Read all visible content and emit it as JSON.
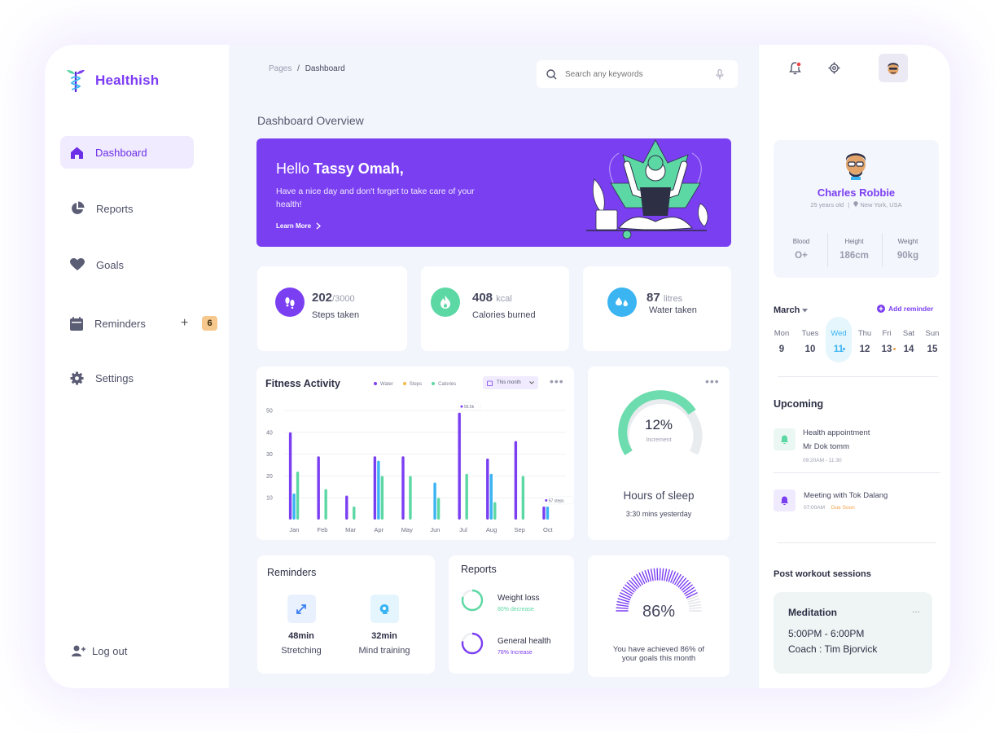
{
  "app": {
    "name": "Healthish"
  },
  "sidebar": {
    "items": [
      {
        "label": "Dashboard",
        "icon": "home-icon",
        "active": true
      },
      {
        "label": "Reports",
        "icon": "pie-chart-icon",
        "active": false
      },
      {
        "label": "Goals",
        "icon": "heart-icon",
        "active": false
      },
      {
        "label": "Reminders",
        "icon": "calendar-icon",
        "active": false
      },
      {
        "label": "Settings",
        "icon": "gear-icon",
        "active": false
      }
    ],
    "reminders_plus": "+",
    "reminders_count": "6",
    "logout_label": "Log out"
  },
  "breadcrumb": {
    "parent": "Pages",
    "separator": "/",
    "current": "Dashboard"
  },
  "search": {
    "placeholder": "Search any keywords"
  },
  "page_title": "Dashboard Overview",
  "banner": {
    "greeting": "Hello",
    "name": "Tassy Omah,",
    "message": "Have a nice day and don't forget to take care of your health!",
    "cta": "Learn More"
  },
  "stats": [
    {
      "value": "202",
      "unit": "/3000",
      "label": "Steps taken",
      "icon": "footsteps-icon",
      "color": "#7b3ff2"
    },
    {
      "value": "408",
      "unit": "kcal",
      "label": "Calories burned",
      "icon": "flame-icon",
      "color": "#5cd8a4"
    },
    {
      "value": "87",
      "unit": "litres",
      "label": "Water taken",
      "icon": "water-drops-icon",
      "color": "#3bb4f2"
    }
  ],
  "fitness": {
    "title": "Fitness Activity",
    "legend": [
      {
        "name": "Water",
        "color": "#7b3ff2"
      },
      {
        "name": "Steps",
        "color": "#f5b84a"
      },
      {
        "name": "Calories",
        "color": "#5cd8a4"
      }
    ],
    "filter": "This month",
    "menu": "•••"
  },
  "chart_data": {
    "type": "bar",
    "categories": [
      "Jan",
      "Feb",
      "Mar",
      "Apr",
      "May",
      "Jun",
      "Jul",
      "Aug",
      "Sep",
      "Oct"
    ],
    "yticks": [
      10,
      20,
      30,
      40,
      50
    ],
    "ylim": [
      0,
      50
    ],
    "series": [
      {
        "name": "Water",
        "color": "#7b3ff2",
        "values": [
          40,
          29,
          11,
          29,
          29,
          0,
          49,
          28,
          36,
          6
        ]
      },
      {
        "name": "Steps",
        "color": "#3bb4f2",
        "values": [
          12,
          0,
          0,
          27,
          0,
          17,
          0,
          21,
          0,
          6
        ]
      },
      {
        "name": "Calories",
        "color": "#5cd8a4",
        "values": [
          22,
          14,
          6,
          20,
          20,
          10,
          21,
          8,
          20,
          0
        ]
      }
    ],
    "annotations": [
      {
        "category": "Jul",
        "label": "56.5k"
      },
      {
        "category": "Oct",
        "label": "57 steps"
      }
    ]
  },
  "sleep": {
    "percent_label": "12%",
    "percent": 12,
    "sub": "Increment",
    "title": "Hours of sleep",
    "detail": "3:30 mins yesterday",
    "menu": "•••"
  },
  "reminders_card": {
    "title": "Reminders",
    "items": [
      {
        "value": "48min",
        "label": "Stretching",
        "icon": "stretch-arrows-icon"
      },
      {
        "value": "32min",
        "label": "Mind training",
        "icon": "brain-head-icon"
      }
    ]
  },
  "reports_card": {
    "title": "Reports",
    "items": [
      {
        "label": "Weight loss",
        "sub": "80% decrease",
        "percent": 80,
        "color": "#5cd8a4"
      },
      {
        "label": "General health",
        "sub": "78% Increase",
        "percent": 78,
        "color": "#7b3ff2"
      }
    ]
  },
  "goals_card": {
    "percent_label": "86%",
    "percent": 86,
    "text": "You have achieved 86% of your goals this month"
  },
  "profile": {
    "name": "Charles Robbie",
    "age": "25 years old",
    "location": "New York, USA",
    "metrics": [
      {
        "label": "Blood",
        "value": "O+"
      },
      {
        "label": "Height",
        "value": "186cm"
      },
      {
        "label": "Weight",
        "value": "90kg"
      }
    ]
  },
  "calendar": {
    "month": "March",
    "add_label": "Add reminder",
    "days": [
      {
        "name": "Mon",
        "num": "9",
        "selected": false,
        "dot": false
      },
      {
        "name": "Tues",
        "num": "10",
        "selected": false,
        "dot": false
      },
      {
        "name": "Wed",
        "num": "11",
        "selected": true,
        "dot": true
      },
      {
        "name": "Thu",
        "num": "12",
        "selected": false,
        "dot": false
      },
      {
        "name": "Fri",
        "num": "13",
        "selected": false,
        "dot": true
      },
      {
        "name": "Sat",
        "num": "14",
        "selected": false,
        "dot": false
      },
      {
        "name": "Sun",
        "num": "15",
        "selected": false,
        "dot": false
      }
    ]
  },
  "upcoming": {
    "title": "Upcoming",
    "items": [
      {
        "title": "Health appointment",
        "sub": "Mr Dok tomm",
        "time": "09:20AM - 11:30",
        "tag": "",
        "color": "#5cd8a4"
      },
      {
        "title": "Meeting with Tok Dalang",
        "sub": "",
        "time": "07:00AM",
        "tag": "Due Soon",
        "color": "#7b3ff2"
      }
    ]
  },
  "post_workout": {
    "title": "Post workout sessions",
    "session": {
      "name": "Meditation",
      "time": "5:00PM - 6:00PM",
      "coach": "Coach : Tim Bjorvick",
      "menu": "..."
    }
  }
}
